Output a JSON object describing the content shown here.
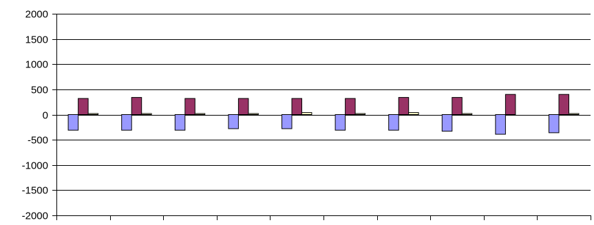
{
  "chart_data": {
    "type": "bar",
    "title": "",
    "xlabel": "",
    "ylabel": "",
    "ylim": [
      -2000,
      2000
    ],
    "y_ticks": [
      "2000",
      "1500",
      "1000",
      "500",
      "0",
      "-500",
      "-1000",
      "-1500",
      "-2000"
    ],
    "y_tick_values": [
      2000,
      1500,
      1000,
      500,
      0,
      -500,
      -1000,
      -1500,
      -2000
    ],
    "grid": true,
    "legend": "none",
    "categories": [
      "",
      "",
      "",
      "",
      "",
      "",
      "",
      "",
      "",
      ""
    ],
    "series": [
      {
        "color": "#9999ff",
        "values": [
          -310,
          -310,
          -310,
          -280,
          -280,
          -310,
          -310,
          -330,
          -390,
          -360
        ]
      },
      {
        "color": "#993366",
        "values": [
          320,
          340,
          320,
          320,
          320,
          320,
          340,
          340,
          400,
          400
        ]
      },
      {
        "color": "#ffffcc",
        "values": [
          20,
          20,
          20,
          20,
          40,
          20,
          40,
          20,
          0,
          20
        ]
      }
    ]
  }
}
